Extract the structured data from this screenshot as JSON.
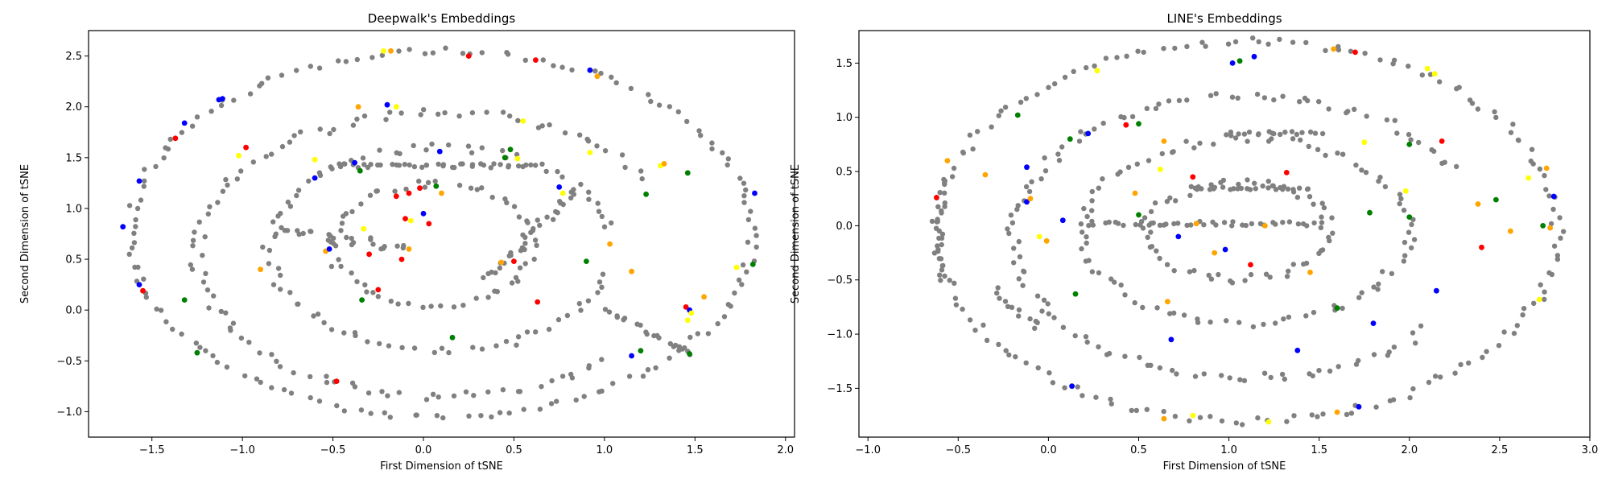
{
  "chart_data": [
    {
      "type": "scatter",
      "title": "Deepwalk's Embeddings",
      "xlabel": "First Dimension of tSNE",
      "ylabel": "Second Dimension of tSNE",
      "xlim": [
        -1.85,
        2.05
      ],
      "ylim": [
        -1.25,
        2.75
      ],
      "xticks": [
        -1.5,
        -1.0,
        -0.5,
        0.0,
        0.5,
        1.0,
        1.5,
        2.0
      ],
      "xtick_labels": [
        "−1.5",
        "−1.0",
        "−0.5",
        "0.0",
        "0.5",
        "1.0",
        "1.5",
        "2.0"
      ],
      "yticks": [
        -1.0,
        -0.5,
        0.0,
        0.5,
        1.0,
        1.5,
        2.0,
        2.5
      ],
      "ytick_labels": [
        "−1.0",
        "−0.5",
        "0.0",
        "0.5",
        "1.0",
        "1.5",
        "2.0",
        "2.5"
      ],
      "colors": {
        "gray": "#808080",
        "blue": "#0000ff",
        "red": "#ff0000",
        "green": "#008000",
        "orange": "#ffa500",
        "yellow": "#ffff00"
      },
      "gray_curves": [
        {
          "kind": "ellipse",
          "cx": 0.1,
          "cy": 0.75,
          "rx": 1.72,
          "ry": 1.8,
          "t0": 0.0,
          "t1": 6.28,
          "n": 150,
          "jitter": 0.03
        },
        {
          "kind": "ellipse",
          "cx": 0.1,
          "cy": 0.55,
          "rx": 1.35,
          "ry": 1.4,
          "t0": 0.6,
          "t1": 5.5,
          "n": 100,
          "jitter": 0.04
        },
        {
          "kind": "ellipse",
          "cx": 0.1,
          "cy": 0.6,
          "rx": 0.95,
          "ry": 1.0,
          "t0": 0.2,
          "t1": 6.1,
          "n": 85,
          "jitter": 0.04
        },
        {
          "kind": "ellipse",
          "cx": 0.05,
          "cy": 0.65,
          "rx": 0.55,
          "ry": 0.6,
          "t0": 0.0,
          "t1": 6.28,
          "n": 60,
          "jitter": 0.04
        },
        {
          "kind": "line",
          "x0": -0.5,
          "y0": 1.42,
          "x1": 0.6,
          "y1": 1.42,
          "n": 40,
          "jitter": 0.02
        },
        {
          "kind": "line",
          "x0": 0.35,
          "y0": 0.3,
          "x1": 0.85,
          "y1": 1.2,
          "n": 30,
          "jitter": 0.03
        },
        {
          "kind": "line",
          "x0": -0.8,
          "y0": 0.8,
          "x1": -0.1,
          "y1": 0.6,
          "n": 25,
          "jitter": 0.05
        },
        {
          "kind": "line",
          "x0": 1.0,
          "y0": 0.0,
          "x1": 1.5,
          "y1": -0.45,
          "n": 20,
          "jitter": 0.03
        }
      ],
      "colored_points": [
        {
          "x": -1.57,
          "y": 0.25,
          "c": "blue"
        },
        {
          "x": -1.55,
          "y": 0.19,
          "c": "red"
        },
        {
          "x": -1.66,
          "y": 0.82,
          "c": "blue"
        },
        {
          "x": -1.57,
          "y": 1.27,
          "c": "blue"
        },
        {
          "x": -1.37,
          "y": 1.69,
          "c": "red"
        },
        {
          "x": -1.32,
          "y": 1.84,
          "c": "blue"
        },
        {
          "x": -1.13,
          "y": 2.07,
          "c": "blue"
        },
        {
          "x": -1.11,
          "y": 2.08,
          "c": "blue"
        },
        {
          "x": -1.02,
          "y": 1.52,
          "c": "yellow"
        },
        {
          "x": -0.98,
          "y": 1.6,
          "c": "red"
        },
        {
          "x": -0.9,
          "y": 0.4,
          "c": "orange"
        },
        {
          "x": -1.32,
          "y": 0.1,
          "c": "green"
        },
        {
          "x": -1.25,
          "y": -0.42,
          "c": "green"
        },
        {
          "x": -0.6,
          "y": 1.48,
          "c": "yellow"
        },
        {
          "x": -0.6,
          "y": 1.3,
          "c": "blue"
        },
        {
          "x": -0.54,
          "y": 0.58,
          "c": "orange"
        },
        {
          "x": -0.52,
          "y": 0.6,
          "c": "blue"
        },
        {
          "x": -0.48,
          "y": -0.7,
          "c": "red"
        },
        {
          "x": -0.38,
          "y": 1.45,
          "c": "blue"
        },
        {
          "x": -0.35,
          "y": 1.37,
          "c": "green"
        },
        {
          "x": -0.33,
          "y": 0.8,
          "c": "yellow"
        },
        {
          "x": -0.3,
          "y": 0.55,
          "c": "red"
        },
        {
          "x": -0.34,
          "y": 0.1,
          "c": "green"
        },
        {
          "x": -0.25,
          "y": 0.2,
          "c": "red"
        },
        {
          "x": -0.22,
          "y": 2.55,
          "c": "yellow"
        },
        {
          "x": -0.18,
          "y": 2.55,
          "c": "orange"
        },
        {
          "x": -0.36,
          "y": 2.0,
          "c": "orange"
        },
        {
          "x": -0.2,
          "y": 2.02,
          "c": "blue"
        },
        {
          "x": -0.15,
          "y": 2.0,
          "c": "yellow"
        },
        {
          "x": -0.15,
          "y": 1.12,
          "c": "red"
        },
        {
          "x": -0.08,
          "y": 1.15,
          "c": "red"
        },
        {
          "x": -0.02,
          "y": 1.2,
          "c": "red"
        },
        {
          "x": -0.1,
          "y": 0.9,
          "c": "red"
        },
        {
          "x": -0.07,
          "y": 0.88,
          "c": "yellow"
        },
        {
          "x": 0.0,
          "y": 0.95,
          "c": "blue"
        },
        {
          "x": 0.03,
          "y": 0.85,
          "c": "red"
        },
        {
          "x": -0.12,
          "y": 0.5,
          "c": "red"
        },
        {
          "x": -0.08,
          "y": 0.6,
          "c": "orange"
        },
        {
          "x": 0.07,
          "y": 1.22,
          "c": "green"
        },
        {
          "x": 0.1,
          "y": 1.15,
          "c": "orange"
        },
        {
          "x": 0.09,
          "y": 1.56,
          "c": "blue"
        },
        {
          "x": 0.16,
          "y": -0.27,
          "c": "green"
        },
        {
          "x": 0.25,
          "y": 2.5,
          "c": "red"
        },
        {
          "x": 0.45,
          "y": 1.5,
          "c": "green"
        },
        {
          "x": 0.48,
          "y": 1.58,
          "c": "green"
        },
        {
          "x": 0.52,
          "y": 1.49,
          "c": "yellow"
        },
        {
          "x": 0.55,
          "y": 1.86,
          "c": "yellow"
        },
        {
          "x": 0.5,
          "y": 0.48,
          "c": "red"
        },
        {
          "x": 0.43,
          "y": 0.47,
          "c": "orange"
        },
        {
          "x": 0.62,
          "y": 2.46,
          "c": "red"
        },
        {
          "x": 0.63,
          "y": 0.08,
          "c": "red"
        },
        {
          "x": 0.75,
          "y": 1.21,
          "c": "blue"
        },
        {
          "x": 0.77,
          "y": 1.15,
          "c": "yellow"
        },
        {
          "x": 0.92,
          "y": 2.36,
          "c": "blue"
        },
        {
          "x": 0.96,
          "y": 2.3,
          "c": "orange"
        },
        {
          "x": 0.92,
          "y": 1.55,
          "c": "yellow"
        },
        {
          "x": 0.9,
          "y": 0.48,
          "c": "green"
        },
        {
          "x": 1.03,
          "y": 0.65,
          "c": "orange"
        },
        {
          "x": 1.15,
          "y": -0.45,
          "c": "blue"
        },
        {
          "x": 1.15,
          "y": 0.38,
          "c": "orange"
        },
        {
          "x": 1.2,
          "y": -0.4,
          "c": "green"
        },
        {
          "x": 1.23,
          "y": 1.14,
          "c": "green"
        },
        {
          "x": 1.31,
          "y": 1.42,
          "c": "yellow"
        },
        {
          "x": 1.33,
          "y": 1.44,
          "c": "orange"
        },
        {
          "x": 1.46,
          "y": 1.35,
          "c": "green"
        },
        {
          "x": 1.45,
          "y": 0.03,
          "c": "red"
        },
        {
          "x": 1.47,
          "y": 0.0,
          "c": "blue"
        },
        {
          "x": 1.48,
          "y": -0.03,
          "c": "yellow"
        },
        {
          "x": 1.46,
          "y": -0.1,
          "c": "yellow"
        },
        {
          "x": 1.55,
          "y": 0.13,
          "c": "orange"
        },
        {
          "x": 1.47,
          "y": -0.43,
          "c": "green"
        },
        {
          "x": 1.73,
          "y": 0.42,
          "c": "yellow"
        },
        {
          "x": 1.82,
          "y": 0.45,
          "c": "green"
        },
        {
          "x": 1.83,
          "y": 1.15,
          "c": "blue"
        }
      ]
    },
    {
      "type": "scatter",
      "title": "LINE's Embeddings",
      "xlabel": "First Dimension of tSNE",
      "ylabel": "Second Dimension of tSNE",
      "xlim": [
        -1.05,
        3.0
      ],
      "ylim": [
        -1.95,
        1.8
      ],
      "xticks": [
        -1.0,
        -0.5,
        0.0,
        0.5,
        1.0,
        1.5,
        2.0,
        2.5,
        3.0
      ],
      "xtick_labels": [
        "−1.0",
        "−0.5",
        "0.0",
        "0.5",
        "1.0",
        "1.5",
        "2.0",
        "2.5",
        "3.0"
      ],
      "yticks": [
        -1.5,
        -1.0,
        -0.5,
        0.0,
        0.5,
        1.0,
        1.5
      ],
      "ytick_labels": [
        "−1.5",
        "−1.0",
        "−0.5",
        "0.0",
        "0.5",
        "1.0",
        "1.5"
      ],
      "colors": {
        "gray": "#808080",
        "blue": "#0000ff",
        "red": "#ff0000",
        "green": "#008000",
        "orange": "#ffa500",
        "yellow": "#ffff00"
      },
      "gray_curves": [
        {
          "kind": "ellipse",
          "cx": 1.1,
          "cy": -0.05,
          "rx": 1.72,
          "ry": 1.75,
          "t0": 0.0,
          "t1": 6.28,
          "n": 160,
          "jitter": 0.035
        },
        {
          "kind": "ellipse",
          "cx": 1.1,
          "cy": -0.1,
          "rx": 1.3,
          "ry": 1.3,
          "t0": 0.5,
          "t1": 5.6,
          "n": 110,
          "jitter": 0.04
        },
        {
          "kind": "ellipse",
          "cx": 1.1,
          "cy": -0.05,
          "rx": 0.9,
          "ry": 0.85,
          "t0": 0.0,
          "t1": 6.28,
          "n": 90,
          "jitter": 0.04
        },
        {
          "kind": "ellipse",
          "cx": 1.05,
          "cy": -0.05,
          "rx": 0.5,
          "ry": 0.45,
          "t0": 0.0,
          "t1": 6.28,
          "n": 60,
          "jitter": 0.04
        },
        {
          "kind": "line",
          "x0": 0.2,
          "y0": 0.02,
          "x1": 1.5,
          "y1": 0.02,
          "n": 40,
          "jitter": 0.02
        },
        {
          "kind": "line",
          "x0": 0.8,
          "y0": 0.35,
          "x1": 1.45,
          "y1": 0.35,
          "n": 25,
          "jitter": 0.02
        },
        {
          "kind": "line",
          "x0": -0.6,
          "y0": 0.4,
          "x1": -0.6,
          "y1": -0.5,
          "n": 20,
          "jitter": 0.03
        },
        {
          "kind": "line",
          "x0": -0.3,
          "y0": -0.6,
          "x1": -0.05,
          "y1": -0.95,
          "n": 12,
          "jitter": 0.03
        },
        {
          "kind": "line",
          "x0": 1.0,
          "y0": 0.85,
          "x1": 1.5,
          "y1": 0.85,
          "n": 18,
          "jitter": 0.02
        }
      ],
      "colored_points": [
        {
          "x": -0.62,
          "y": 0.26,
          "c": "red"
        },
        {
          "x": -0.56,
          "y": 0.6,
          "c": "orange"
        },
        {
          "x": -0.35,
          "y": 0.47,
          "c": "orange"
        },
        {
          "x": -0.17,
          "y": 1.02,
          "c": "green"
        },
        {
          "x": -0.12,
          "y": 0.54,
          "c": "blue"
        },
        {
          "x": -0.12,
          "y": 0.22,
          "c": "blue"
        },
        {
          "x": -0.1,
          "y": 0.25,
          "c": "orange"
        },
        {
          "x": -0.05,
          "y": -0.1,
          "c": "yellow"
        },
        {
          "x": -0.01,
          "y": -0.14,
          "c": "orange"
        },
        {
          "x": 0.08,
          "y": 0.05,
          "c": "blue"
        },
        {
          "x": 0.12,
          "y": 0.8,
          "c": "green"
        },
        {
          "x": 0.15,
          "y": -0.63,
          "c": "green"
        },
        {
          "x": 0.22,
          "y": 0.85,
          "c": "blue"
        },
        {
          "x": 0.27,
          "y": 1.43,
          "c": "yellow"
        },
        {
          "x": 0.13,
          "y": -1.48,
          "c": "blue"
        },
        {
          "x": 0.43,
          "y": 0.93,
          "c": "red"
        },
        {
          "x": 0.5,
          "y": 0.94,
          "c": "green"
        },
        {
          "x": 0.48,
          "y": 0.3,
          "c": "orange"
        },
        {
          "x": 0.5,
          "y": 0.1,
          "c": "green"
        },
        {
          "x": 0.62,
          "y": 0.52,
          "c": "yellow"
        },
        {
          "x": 0.64,
          "y": 0.78,
          "c": "orange"
        },
        {
          "x": 0.66,
          "y": -0.7,
          "c": "orange"
        },
        {
          "x": 0.68,
          "y": -1.05,
          "c": "blue"
        },
        {
          "x": 0.64,
          "y": -1.78,
          "c": "orange"
        },
        {
          "x": 0.72,
          "y": -0.1,
          "c": "blue"
        },
        {
          "x": 0.8,
          "y": 0.45,
          "c": "red"
        },
        {
          "x": 0.82,
          "y": 0.02,
          "c": "orange"
        },
        {
          "x": 0.8,
          "y": -1.75,
          "c": "yellow"
        },
        {
          "x": 0.92,
          "y": -0.25,
          "c": "orange"
        },
        {
          "x": 0.98,
          "y": -0.22,
          "c": "blue"
        },
        {
          "x": 1.02,
          "y": 1.5,
          "c": "blue"
        },
        {
          "x": 1.06,
          "y": 1.52,
          "c": "green"
        },
        {
          "x": 1.12,
          "y": -0.36,
          "c": "red"
        },
        {
          "x": 1.14,
          "y": 1.56,
          "c": "blue"
        },
        {
          "x": 1.22,
          "y": -1.81,
          "c": "yellow"
        },
        {
          "x": 1.2,
          "y": 0.0,
          "c": "orange"
        },
        {
          "x": 1.32,
          "y": 0.49,
          "c": "red"
        },
        {
          "x": 1.38,
          "y": -1.15,
          "c": "blue"
        },
        {
          "x": 1.45,
          "y": -0.43,
          "c": "orange"
        },
        {
          "x": 1.58,
          "y": 1.63,
          "c": "orange"
        },
        {
          "x": 1.6,
          "y": -1.72,
          "c": "orange"
        },
        {
          "x": 1.6,
          "y": -0.76,
          "c": "green"
        },
        {
          "x": 1.7,
          "y": 1.6,
          "c": "red"
        },
        {
          "x": 1.75,
          "y": 0.77,
          "c": "yellow"
        },
        {
          "x": 1.72,
          "y": -1.67,
          "c": "blue"
        },
        {
          "x": 1.78,
          "y": 0.12,
          "c": "green"
        },
        {
          "x": 1.8,
          "y": -0.9,
          "c": "blue"
        },
        {
          "x": 1.98,
          "y": 0.32,
          "c": "yellow"
        },
        {
          "x": 2.0,
          "y": 0.75,
          "c": "green"
        },
        {
          "x": 2.0,
          "y": 0.08,
          "c": "green"
        },
        {
          "x": 2.1,
          "y": 1.45,
          "c": "yellow"
        },
        {
          "x": 2.14,
          "y": 1.4,
          "c": "yellow"
        },
        {
          "x": 2.18,
          "y": 0.78,
          "c": "red"
        },
        {
          "x": 2.15,
          "y": -0.6,
          "c": "blue"
        },
        {
          "x": 2.38,
          "y": 0.2,
          "c": "orange"
        },
        {
          "x": 2.4,
          "y": -0.2,
          "c": "red"
        },
        {
          "x": 2.48,
          "y": 0.24,
          "c": "green"
        },
        {
          "x": 2.56,
          "y": -0.05,
          "c": "orange"
        },
        {
          "x": 2.66,
          "y": 0.44,
          "c": "yellow"
        },
        {
          "x": 2.72,
          "y": -0.68,
          "c": "yellow"
        },
        {
          "x": 2.76,
          "y": 0.53,
          "c": "orange"
        },
        {
          "x": 2.8,
          "y": 0.27,
          "c": "blue"
        },
        {
          "x": 2.74,
          "y": 0.0,
          "c": "green"
        },
        {
          "x": 2.78,
          "y": -0.02,
          "c": "orange"
        }
      ]
    }
  ]
}
